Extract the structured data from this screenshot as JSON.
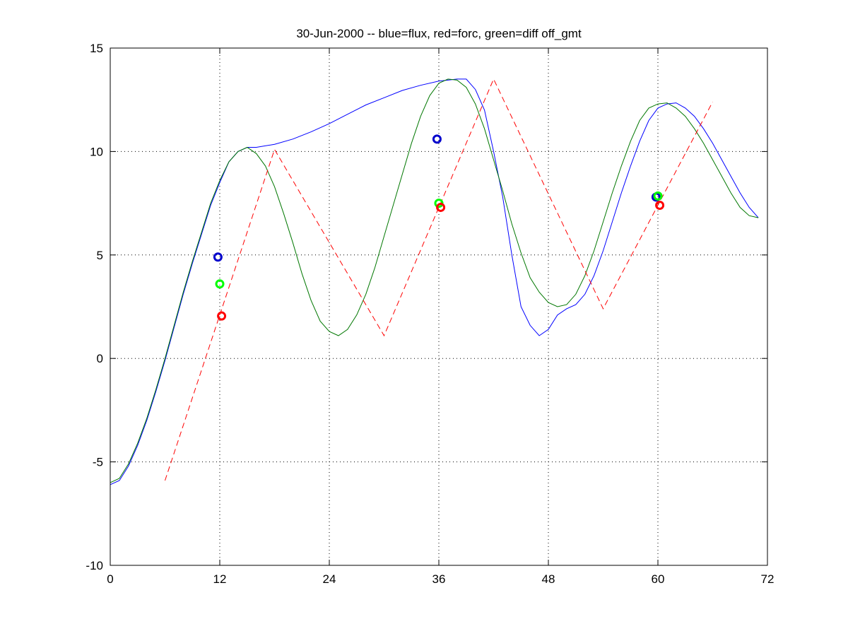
{
  "chart_data": {
    "type": "line",
    "title": "30-Jun-2000 -- blue=flux, red=forc, green=diff off_gmt",
    "xlabel": "",
    "ylabel": "",
    "xlim": [
      0,
      72
    ],
    "ylim": [
      -10,
      15
    ],
    "xticks": [
      0,
      12,
      24,
      36,
      48,
      60,
      72
    ],
    "yticks": [
      -10,
      -5,
      0,
      5,
      10,
      15
    ],
    "grid": true,
    "series": [
      {
        "color": "#0000ff",
        "style": "solid",
        "x": [
          0,
          1,
          2,
          3,
          4,
          5,
          6,
          7,
          8,
          9,
          10,
          11,
          12,
          13,
          14,
          15,
          16,
          18,
          20,
          22,
          24,
          26,
          28,
          30,
          32,
          34,
          36,
          37,
          38,
          39,
          40,
          41,
          42,
          43,
          44,
          45,
          46,
          47,
          48,
          49,
          50,
          51,
          52,
          53,
          54,
          55,
          56,
          57,
          58,
          59,
          60,
          61,
          62,
          63,
          64,
          65,
          66,
          67,
          68,
          69,
          70,
          71
        ],
        "y": [
          -6.1,
          -5.9,
          -5.2,
          -4.2,
          -3.0,
          -1.6,
          -0.1,
          1.5,
          3.1,
          4.6,
          6.0,
          7.4,
          8.5,
          9.5,
          10.0,
          10.2,
          10.2,
          10.35,
          10.6,
          10.95,
          11.35,
          11.8,
          12.25,
          12.6,
          12.95,
          13.2,
          13.4,
          13.45,
          13.5,
          13.5,
          13.0,
          12.0,
          10.0,
          7.8,
          5.0,
          2.5,
          1.6,
          1.1,
          1.4,
          2.1,
          2.4,
          2.6,
          3.1,
          4.0,
          5.2,
          6.6,
          8.0,
          9.3,
          10.5,
          11.5,
          12.1,
          12.3,
          12.35,
          12.1,
          11.7,
          11.1,
          10.4,
          9.6,
          8.8,
          8.0,
          7.3,
          6.8
        ]
      },
      {
        "color": "#007700",
        "style": "solid",
        "x": [
          0,
          1,
          2,
          3,
          4,
          5,
          6,
          7,
          8,
          9,
          10,
          11,
          12,
          13,
          14,
          15,
          16,
          17,
          18,
          19,
          20,
          21,
          22,
          23,
          24,
          25,
          26,
          27,
          28,
          29,
          30,
          31,
          32,
          33,
          34,
          35,
          36,
          37,
          38,
          39,
          40,
          41,
          42,
          43,
          44,
          45,
          46,
          47,
          48,
          49,
          50,
          51,
          52,
          53,
          54,
          55,
          56,
          57,
          58,
          59,
          60,
          61,
          62,
          63,
          64,
          65,
          66,
          67,
          68,
          69,
          70,
          71
        ],
        "y": [
          -6.0,
          -5.8,
          -5.1,
          -4.1,
          -2.9,
          -1.5,
          0.0,
          1.6,
          3.2,
          4.7,
          6.1,
          7.5,
          8.6,
          9.5,
          10.0,
          10.2,
          9.9,
          9.3,
          8.3,
          7.0,
          5.6,
          4.1,
          2.8,
          1.8,
          1.3,
          1.1,
          1.4,
          2.1,
          3.1,
          4.4,
          5.9,
          7.4,
          8.9,
          10.4,
          11.7,
          12.7,
          13.3,
          13.5,
          13.45,
          13.1,
          12.3,
          11.1,
          9.6,
          8.1,
          6.5,
          5.1,
          3.9,
          3.2,
          2.7,
          2.5,
          2.6,
          3.1,
          4.0,
          5.2,
          6.6,
          8.0,
          9.3,
          10.5,
          11.5,
          12.1,
          12.3,
          12.35,
          12.1,
          11.7,
          11.1,
          10.4,
          9.6,
          8.8,
          8.0,
          7.3,
          6.9,
          6.8
        ]
      },
      {
        "color": "#ff0000",
        "style": "dashed",
        "x": [
          6,
          18,
          30,
          42,
          54,
          66
        ],
        "y": [
          -5.9,
          10.1,
          1.1,
          13.5,
          2.4,
          12.4
        ]
      }
    ],
    "markers": [
      {
        "x": 11.8,
        "y": 4.9,
        "color": "#0000cc"
      },
      {
        "x": 12.0,
        "y": 3.6,
        "color": "#00ff00"
      },
      {
        "x": 12.2,
        "y": 2.05,
        "color": "#ff0000"
      },
      {
        "x": 35.8,
        "y": 10.6,
        "color": "#0000cc"
      },
      {
        "x": 36.0,
        "y": 7.5,
        "color": "#00ff00"
      },
      {
        "x": 36.2,
        "y": 7.3,
        "color": "#ff0000"
      },
      {
        "x": 59.8,
        "y": 7.8,
        "color": "#0000cc"
      },
      {
        "x": 60.0,
        "y": 7.85,
        "color": "#00ff00"
      },
      {
        "x": 60.2,
        "y": 7.4,
        "color": "#ff0000"
      }
    ]
  }
}
